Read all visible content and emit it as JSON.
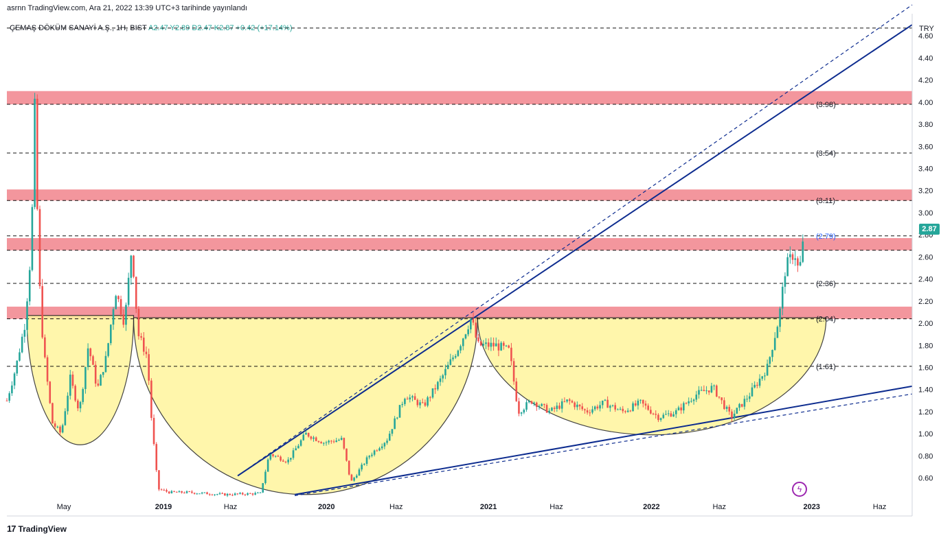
{
  "header": {
    "published": "asrnn TradingView.com, Ara 21, 2022 13:39 UTC+3 tarihinde yayınlandı",
    "symbol": "ÇEMAŞ DÖKÜM SANAYİ A.Ş., 1H, BIST",
    "ohlc": "A2.47  Y2.89  D2.47  K2.87  +0.42 (+17.14%)"
  },
  "footer": {
    "brand": "TradingView",
    "logo": "17"
  },
  "colors": {
    "up": "#26a69a",
    "down": "#ef5350",
    "resistance_zone": "#f28b92",
    "trend": "#0d2c8f",
    "bowl": "#fff59d",
    "bowl_edge": "#222222",
    "label": "#131722",
    "current_label": "#2962ff"
  },
  "chart_data": {
    "type": "candlestick",
    "currency": "TRY",
    "ylim": [
      0.43,
      4.75
    ],
    "y_ticks": [
      "4.60",
      "4.40",
      "4.20",
      "4.00",
      "3.80",
      "3.60",
      "3.40",
      "3.20",
      "3.00",
      "2.80",
      "2.60",
      "2.40",
      "2.20",
      "2.00",
      "1.80",
      "1.60",
      "1.40",
      "1.20",
      "1.00",
      "0.80",
      "0.60"
    ],
    "x_ticks": [
      {
        "label": "May",
        "t": 0.063
      },
      {
        "label": "2019",
        "t": 0.173
      },
      {
        "label": "Haz",
        "t": 0.247
      },
      {
        "label": "2020",
        "t": 0.353
      },
      {
        "label": "Haz",
        "t": 0.43
      },
      {
        "label": "2021",
        "t": 0.532
      },
      {
        "label": "Haz",
        "t": 0.607
      },
      {
        "label": "2022",
        "t": 0.712
      },
      {
        "label": "Haz",
        "t": 0.787
      },
      {
        "label": "2023",
        "t": 0.889
      },
      {
        "label": "Haz",
        "t": 0.964
      }
    ],
    "last_price": "2.87",
    "levels": [
      {
        "value": 4.67,
        "label": ""
      },
      {
        "value": 3.98,
        "label": "(3.98)"
      },
      {
        "value": 3.54,
        "label": "(3.54)"
      },
      {
        "value": 3.11,
        "label": "(3.11)"
      },
      {
        "value": 2.79,
        "label": "(2.79)",
        "current": true
      },
      {
        "value": 2.66,
        "label": ""
      },
      {
        "value": 2.36,
        "label": "(2.36)"
      },
      {
        "value": 2.04,
        "label": "(2.04)"
      },
      {
        "value": 1.61,
        "label": "(1.61)"
      }
    ],
    "zones": [
      [
        3.98,
        4.1
      ],
      [
        3.11,
        3.21
      ],
      [
        2.66,
        2.77
      ],
      [
        2.04,
        2.15
      ]
    ],
    "trendlines": [
      {
        "from": [
          0.255,
          0.62
        ],
        "to": [
          1.0,
          4.7
        ],
        "style": "solid"
      },
      {
        "from": [
          0.255,
          0.62
        ],
        "to": [
          1.0,
          4.88
        ],
        "style": "dashed"
      },
      {
        "from": [
          0.318,
          0.45
        ],
        "to": [
          1.0,
          1.43
        ],
        "style": "solid"
      },
      {
        "from": [
          0.318,
          0.44
        ],
        "to": [
          1.0,
          1.36
        ],
        "style": "dashed"
      }
    ],
    "arcs": [
      {
        "x0": 0.022,
        "x1": 0.14,
        "top": 2.07,
        "bottom": 0.9
      },
      {
        "x0": 0.14,
        "x1": 0.52,
        "top": 2.05,
        "bottom": 0.45
      },
      {
        "x0": 0.52,
        "x1": 0.905,
        "top": 2.05,
        "bottom": 0.99
      }
    ],
    "price_path": [
      [
        0.0,
        1.3
      ],
      [
        0.01,
        1.6
      ],
      [
        0.02,
        2.0
      ],
      [
        0.027,
        2.7
      ],
      [
        0.031,
        4.0
      ],
      [
        0.035,
        2.5
      ],
      [
        0.04,
        1.8
      ],
      [
        0.05,
        1.1
      ],
      [
        0.06,
        1.0
      ],
      [
        0.07,
        1.5
      ],
      [
        0.08,
        1.2
      ],
      [
        0.09,
        1.8
      ],
      [
        0.1,
        1.4
      ],
      [
        0.11,
        1.7
      ],
      [
        0.12,
        2.3
      ],
      [
        0.13,
        2.0
      ],
      [
        0.138,
        2.7
      ],
      [
        0.145,
        1.9
      ],
      [
        0.155,
        1.7
      ],
      [
        0.16,
        1.1
      ],
      [
        0.167,
        0.5
      ],
      [
        0.18,
        0.47
      ],
      [
        0.2,
        0.47
      ],
      [
        0.22,
        0.46
      ],
      [
        0.24,
        0.45
      ],
      [
        0.28,
        0.46
      ],
      [
        0.29,
        0.82
      ],
      [
        0.31,
        0.75
      ],
      [
        0.33,
        1.0
      ],
      [
        0.35,
        0.92
      ],
      [
        0.37,
        0.95
      ],
      [
        0.38,
        0.56
      ],
      [
        0.4,
        0.8
      ],
      [
        0.42,
        0.95
      ],
      [
        0.44,
        1.35
      ],
      [
        0.46,
        1.25
      ],
      [
        0.48,
        1.5
      ],
      [
        0.5,
        1.8
      ],
      [
        0.513,
        2.05
      ],
      [
        0.52,
        1.8
      ],
      [
        0.54,
        1.8
      ],
      [
        0.555,
        1.75
      ],
      [
        0.565,
        1.2
      ],
      [
        0.58,
        1.3
      ],
      [
        0.6,
        1.2
      ],
      [
        0.62,
        1.3
      ],
      [
        0.64,
        1.2
      ],
      [
        0.66,
        1.28
      ],
      [
        0.68,
        1.2
      ],
      [
        0.7,
        1.28
      ],
      [
        0.72,
        1.15
      ],
      [
        0.74,
        1.2
      ],
      [
        0.76,
        1.35
      ],
      [
        0.78,
        1.42
      ],
      [
        0.8,
        1.15
      ],
      [
        0.82,
        1.35
      ],
      [
        0.84,
        1.6
      ],
      [
        0.853,
        2.05
      ],
      [
        0.86,
        2.5
      ],
      [
        0.87,
        2.65
      ],
      [
        0.875,
        2.45
      ],
      [
        0.882,
        2.87
      ]
    ]
  }
}
